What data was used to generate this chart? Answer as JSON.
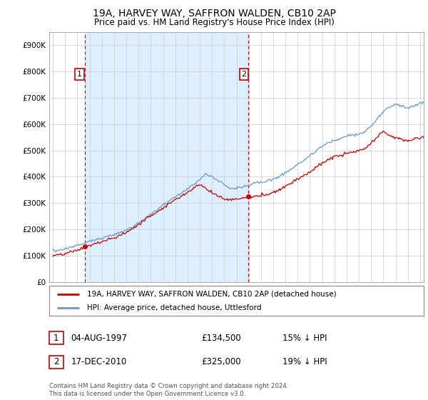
{
  "title1": "19A, HARVEY WAY, SAFFRON WALDEN, CB10 2AP",
  "title2": "Price paid vs. HM Land Registry's House Price Index (HPI)",
  "ylabel_ticks": [
    "£0",
    "£100K",
    "£200K",
    "£300K",
    "£400K",
    "£500K",
    "£600K",
    "£700K",
    "£800K",
    "£900K"
  ],
  "ylim": [
    0,
    950000
  ],
  "xlim_start": 1994.7,
  "xlim_end": 2025.3,
  "purchase1_x": 1997.59,
  "purchase1_y": 134500,
  "purchase1_label": "1",
  "purchase2_x": 2010.96,
  "purchase2_y": 325000,
  "purchase2_label": "2",
  "legend_line1": "19A, HARVEY WAY, SAFFRON WALDEN, CB10 2AP (detached house)",
  "legend_line2": "HPI: Average price, detached house, Uttlesford",
  "table_row1": [
    "1",
    "04-AUG-1997",
    "£134,500",
    "15% ↓ HPI"
  ],
  "table_row2": [
    "2",
    "17-DEC-2010",
    "£325,000",
    "19% ↓ HPI"
  ],
  "footnote": "Contains HM Land Registry data © Crown copyright and database right 2024.\nThis data is licensed under the Open Government Licence v3.0.",
  "line_color_red": "#cc0000",
  "line_color_blue": "#6699cc",
  "shade_color": "#ddeeff",
  "vline_color": "#cc0000",
  "grid_color": "#cccccc",
  "background_color": "#ffffff",
  "hpi_knots_x": [
    1995,
    1995.5,
    1996,
    1996.5,
    1997,
    1997.5,
    1998,
    1998.5,
    1999,
    1999.5,
    2000,
    2000.5,
    2001,
    2001.5,
    2002,
    2002.5,
    2003,
    2003.5,
    2004,
    2004.5,
    2005,
    2005.5,
    2006,
    2006.5,
    2007,
    2007.5,
    2008,
    2008.5,
    2009,
    2009.5,
    2010,
    2010.5,
    2011,
    2011.5,
    2012,
    2012.5,
    2013,
    2013.5,
    2014,
    2014.5,
    2015,
    2015.5,
    2016,
    2016.5,
    2017,
    2017.5,
    2018,
    2018.5,
    2019,
    2019.5,
    2020,
    2020.5,
    2021,
    2021.5,
    2022,
    2022.5,
    2023,
    2023.5,
    2024,
    2024.5,
    2025
  ],
  "hpi_knots_y": [
    120000,
    122000,
    128000,
    133000,
    140000,
    148000,
    158000,
    165000,
    172000,
    178000,
    185000,
    192000,
    200000,
    212000,
    228000,
    245000,
    262000,
    278000,
    295000,
    312000,
    328000,
    342000,
    358000,
    375000,
    395000,
    415000,
    405000,
    390000,
    372000,
    360000,
    362000,
    368000,
    375000,
    382000,
    385000,
    388000,
    395000,
    405000,
    418000,
    432000,
    448000,
    462000,
    478000,
    495000,
    512000,
    525000,
    535000,
    542000,
    548000,
    555000,
    558000,
    568000,
    590000,
    618000,
    645000,
    665000,
    672000,
    668000,
    660000,
    668000,
    680000
  ],
  "prop_knots_x": [
    1995,
    1995.5,
    1996,
    1996.5,
    1997,
    1997.59,
    1998,
    1998.5,
    1999,
    1999.5,
    2000,
    2000.5,
    2001,
    2001.5,
    2002,
    2002.5,
    2003,
    2003.5,
    2004,
    2004.5,
    2005,
    2005.5,
    2006,
    2006.5,
    2007,
    2007.5,
    2008,
    2008.5,
    2009,
    2009.5,
    2010,
    2010.5,
    2010.96,
    2011.5,
    2012,
    2012.5,
    2013,
    2013.5,
    2014,
    2014.5,
    2015,
    2015.5,
    2016,
    2016.5,
    2017,
    2017.5,
    2018,
    2018.5,
    2019,
    2019.5,
    2020,
    2020.5,
    2021,
    2021.5,
    2022,
    2022.5,
    2023,
    2023.5,
    2024,
    2024.5,
    2025
  ],
  "prop_knots_y": [
    100000,
    102000,
    108000,
    115000,
    122000,
    134500,
    142000,
    148000,
    155000,
    162000,
    170000,
    180000,
    192000,
    205000,
    220000,
    238000,
    252000,
    268000,
    282000,
    298000,
    312000,
    326000,
    340000,
    358000,
    375000,
    358000,
    342000,
    330000,
    318000,
    315000,
    318000,
    322000,
    325000,
    328000,
    332000,
    338000,
    345000,
    355000,
    368000,
    382000,
    395000,
    408000,
    422000,
    438000,
    455000,
    468000,
    478000,
    485000,
    492000,
    498000,
    500000,
    510000,
    530000,
    555000,
    575000,
    562000,
    552000,
    548000,
    542000,
    548000,
    555000
  ]
}
